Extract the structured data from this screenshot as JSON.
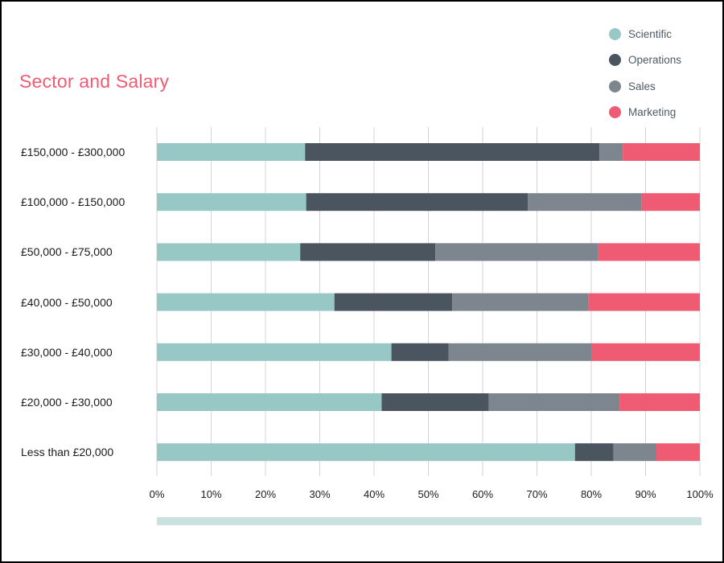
{
  "chart_data": {
    "type": "bar",
    "orientation": "horizontal",
    "stacked": true,
    "normalized": "percent",
    "title": "Sector and Salary",
    "xlabel": "",
    "ylabel": "",
    "xlim": [
      0,
      100
    ],
    "x_ticks": [
      "0%",
      "10%",
      "20%",
      "30%",
      "40%",
      "50%",
      "60%",
      "70%",
      "80%",
      "90%",
      "100%"
    ],
    "grid": true,
    "legend_position": "top-right",
    "categories": [
      "£150,000 - £300,000",
      "£100,000 - £150,000",
      "£50,000 - £75,000",
      "£40,000 - £50,000",
      "£30,000 - £40,000",
      "£20,000 - £30,000",
      "Less than £20,000"
    ],
    "series": [
      {
        "name": "Scientific",
        "color": "#97c8c5",
        "values": [
          27.3,
          27.5,
          26.4,
          32.7,
          43.2,
          41.4,
          77.0
        ]
      },
      {
        "name": "Operations",
        "color": "#4a5560",
        "values": [
          54.2,
          40.8,
          24.9,
          21.7,
          10.5,
          19.7,
          7.1
        ]
      },
      {
        "name": "Sales",
        "color": "#7d868e",
        "values": [
          4.3,
          21.0,
          29.9,
          25.1,
          26.3,
          24.1,
          7.9
        ]
      },
      {
        "name": "Marketing",
        "color": "#ef5b73",
        "values": [
          14.2,
          10.7,
          18.8,
          20.5,
          20.0,
          14.8,
          8.0
        ]
      }
    ]
  },
  "scrollbar_color": "#c9e2e0"
}
